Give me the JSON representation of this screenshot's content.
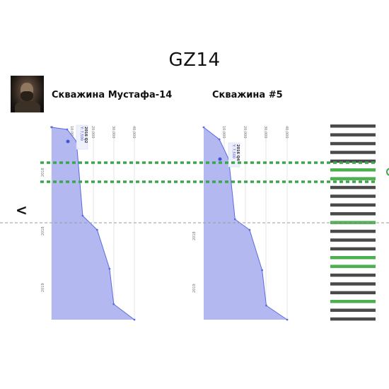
{
  "header": {
    "title": "GZ14"
  },
  "wells": [
    {
      "label": "Скважина Мустафа-14",
      "x_ticks": [
        "0",
        "10,000",
        "20,000",
        "30,000",
        "40,000"
      ],
      "y_ticks": [
        "2018",
        "2018",
        "2019"
      ],
      "tooltip": {
        "period": "2016 Q2",
        "value": "Y: 7,500"
      }
    },
    {
      "label": "Скважина #5",
      "x_ticks": [
        "10,000",
        "20,000",
        "30,000",
        "40,000"
      ],
      "y_ticks": [
        "2018",
        "2019"
      ],
      "tooltip": {
        "period": "2016 Q4",
        "value": "Y: 7,500"
      }
    }
  ],
  "chart_data": [
    {
      "type": "area",
      "orientation": "vertical",
      "series": [
        {
          "x": [
            0,
            7500,
            12000,
            15000,
            22000,
            28000,
            30000,
            40000
          ]
        }
      ],
      "xlim": [
        0,
        40000
      ],
      "grid": true
    },
    {
      "type": "area",
      "orientation": "vertical",
      "series": [
        {
          "x": [
            0,
            7500,
            12000,
            15000,
            22000,
            28000,
            30000,
            40000
          ]
        }
      ],
      "xlim": [
        0,
        40000
      ],
      "grid": true
    }
  ],
  "colors": {
    "area_fill": "#b3b9f0",
    "area_line": "#5b6be0",
    "band_green": "#4caf50",
    "band_dark": "#4a4a4a",
    "dashed_green": "#3aa64a",
    "dashed_gray": "#999999"
  },
  "nav": {
    "back_icon": "chevron-left-icon",
    "back_glyph": "<"
  },
  "bar_pattern": [
    "dark",
    "dark",
    "dark",
    "dark",
    "dark",
    "green",
    "green",
    "dark",
    "dark",
    "dark",
    "dark",
    "green",
    "dark",
    "dark",
    "dark",
    "green",
    "green",
    "dark",
    "dark",
    "dark",
    "green",
    "dark",
    "dark"
  ]
}
